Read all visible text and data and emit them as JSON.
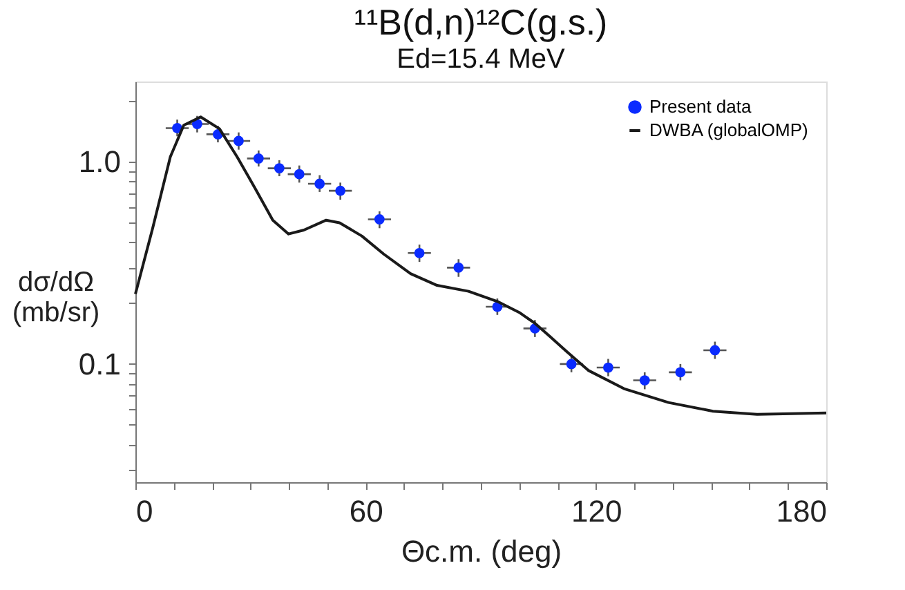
{
  "chart_data": {
    "type": "scatter",
    "title": "¹¹B(d,n)¹²C(g.s.)",
    "subtitle": "Ed=15.4 MeV",
    "xlabel": "Θc.m. (deg)",
    "ylabel": "dσ/dΩ\n(mb/sr)",
    "log": "y",
    "xlim": [
      0,
      180
    ],
    "ylim": [
      0.026,
      2.5
    ],
    "xticks": [
      0,
      {
        "value": 10,
        "label": null
      },
      {
        "value": 20,
        "label": null
      },
      {
        "value": 30,
        "label": null
      },
      {
        "value": 40,
        "label": null
      },
      {
        "value": 50,
        "label": null
      },
      60,
      {
        "value": 70,
        "label": null
      },
      {
        "value": 80,
        "label": null
      },
      {
        "value": 90,
        "label": null
      },
      {
        "value": 100,
        "label": null
      },
      {
        "value": 110,
        "label": null
      },
      120,
      {
        "value": 130,
        "label": null
      },
      {
        "value": 140,
        "label": null
      },
      {
        "value": 150,
        "label": null
      },
      {
        "value": 160,
        "label": null
      },
      {
        "value": 170,
        "label": null
      },
      180
    ],
    "yticks": [
      {
        "value": 0.03,
        "label": null
      },
      {
        "value": 0.04,
        "label": null
      },
      {
        "value": 0.05,
        "label": null
      },
      {
        "value": 0.06,
        "label": null
      },
      {
        "value": 0.07,
        "label": null
      },
      {
        "value": 0.08,
        "label": null
      },
      {
        "value": 0.09,
        "label": null
      },
      {
        "value": 0.1,
        "label": "0.1"
      },
      {
        "value": 0.2,
        "label": null
      },
      {
        "value": 0.3,
        "label": null
      },
      {
        "value": 0.4,
        "label": null
      },
      {
        "value": 0.5,
        "label": null
      },
      {
        "value": 0.6,
        "label": null
      },
      {
        "value": 0.7,
        "label": null
      },
      {
        "value": 0.8,
        "label": null
      },
      {
        "value": 0.9,
        "label": null
      },
      {
        "value": 1,
        "label": "1.0"
      },
      {
        "value": 2,
        "label": null
      }
    ],
    "grid": false,
    "legend": "top right",
    "series": [
      {
        "name": "Present data",
        "type": "scatter",
        "color": "#0a2bff",
        "marker": "circle",
        "x": [
          10.9,
          16.1,
          21.5,
          26.9,
          32.1,
          37.5,
          42.7,
          48,
          53.4,
          63.6,
          74,
          84.2,
          94.3,
          104.1,
          113.6,
          123.2,
          132.7,
          142,
          151
        ],
        "values": [
          1.47,
          1.54,
          1.37,
          1.27,
          1.04,
          0.93,
          0.87,
          0.78,
          0.72,
          0.52,
          0.354,
          0.3,
          0.192,
          0.15,
          0.1,
          0.096,
          0.083,
          0.091,
          0.117
        ],
        "errors": [
          [
            1.34,
            1.62
          ],
          [
            1.4,
            1.69
          ],
          [
            1.25,
            1.51
          ],
          [
            1.15,
            1.4
          ],
          [
            0.95,
            1.14
          ],
          [
            0.85,
            1.02
          ],
          [
            0.79,
            0.96
          ],
          [
            0.71,
            0.86
          ],
          [
            0.65,
            0.79
          ],
          [
            0.47,
            0.57
          ],
          [
            0.32,
            0.39
          ],
          [
            0.27,
            0.33
          ],
          [
            0.175,
            0.211
          ],
          [
            0.136,
            0.165
          ],
          [
            0.091,
            0.11
          ],
          [
            0.087,
            0.106
          ],
          [
            0.075,
            0.091
          ],
          [
            0.083,
            0.1
          ],
          [
            0.106,
            0.129
          ]
        ],
        "xerrors": [
          3,
          3,
          3,
          3,
          3,
          3,
          3,
          3,
          3,
          3,
          3,
          3,
          3,
          3,
          3,
          3,
          3,
          3,
          3
        ]
      },
      {
        "name": "DWBA (globalOMP)",
        "type": "line",
        "color": "#1a1a1a",
        "line_style": "solid",
        "x": [
          0,
          4.5,
          9.1,
          12.6,
          17,
          21.9,
          26.5,
          31.2,
          35.8,
          39.9,
          43.9,
          49.7,
          53.2,
          59,
          64.7,
          71.7,
          78.6,
          86.8,
          94.3,
          100,
          104.1,
          108,
          112.2,
          118,
          127.3,
          138.9,
          150.5,
          162,
          180
        ],
        "values": [
          0.222,
          0.47,
          1.06,
          1.52,
          1.67,
          1.46,
          1.06,
          0.74,
          0.515,
          0.44,
          0.46,
          0.515,
          0.5,
          0.43,
          0.35,
          0.28,
          0.245,
          0.229,
          0.204,
          0.18,
          0.159,
          0.137,
          0.116,
          0.093,
          0.0755,
          0.0645,
          0.0584,
          0.0564,
          0.0572
        ]
      }
    ]
  }
}
